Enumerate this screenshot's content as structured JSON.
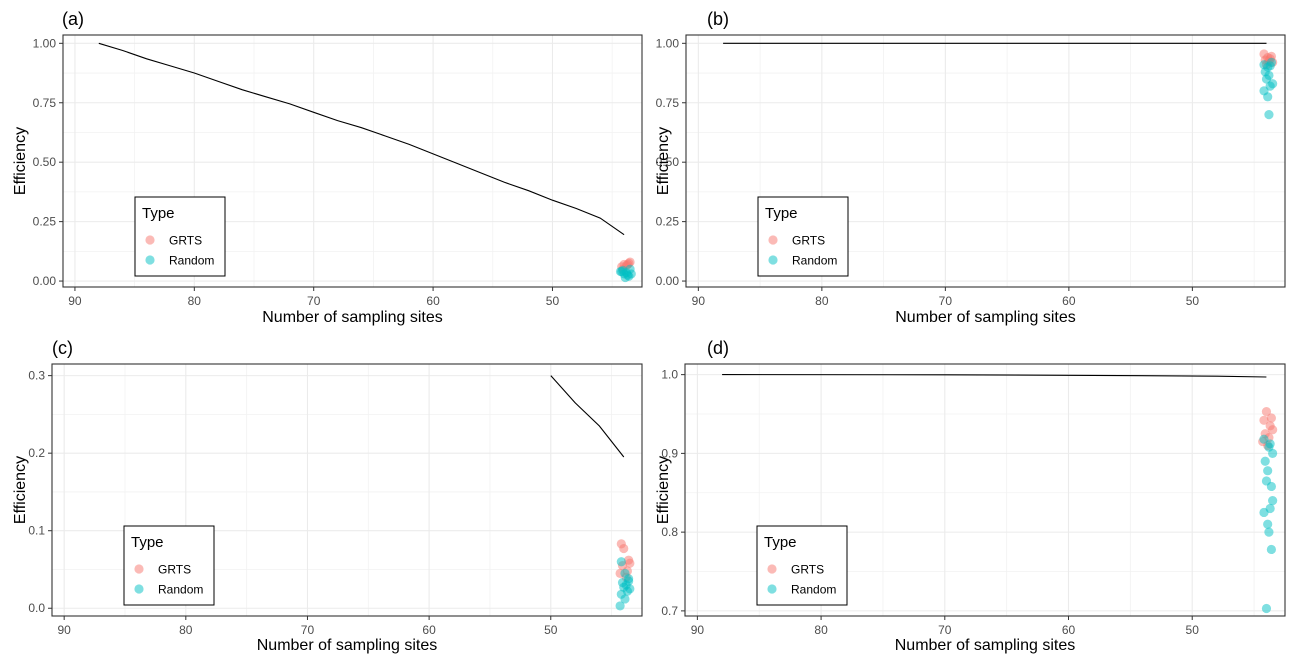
{
  "chart_data": [
    {
      "type": "scatter",
      "panel_label": "(a)",
      "xlabel": "Number of sampling sites",
      "ylabel": "Efficiency",
      "xlim": [
        91,
        42.5
      ],
      "ylim": [
        -0.025,
        1.035
      ],
      "x_reversed": true,
      "x_ticks": [
        90,
        80,
        70,
        60,
        50
      ],
      "x_tick_labels": [
        "90",
        "80",
        "70",
        "60",
        "50"
      ],
      "y_ticks": [
        0,
        0.25,
        0.5,
        0.75,
        1
      ],
      "y_tick_labels": [
        "0.00",
        "0.25",
        "0.50",
        "0.75",
        "1.00"
      ],
      "grid": true,
      "legend": {
        "title": "Type",
        "position": "bottom-left",
        "entries": [
          "GRTS",
          "Random"
        ]
      },
      "colors": {
        "GRTS": "#F8766D",
        "Random": "#00BFC4",
        "line": "#000000"
      },
      "line": {
        "x": [
          88,
          86,
          84,
          82,
          80,
          78,
          76,
          74,
          72,
          70,
          68,
          66,
          64,
          62,
          60,
          58,
          56,
          54,
          52,
          50,
          48,
          46,
          44
        ],
        "y": [
          1.0,
          0.97,
          0.935,
          0.905,
          0.875,
          0.84,
          0.805,
          0.775,
          0.745,
          0.71,
          0.675,
          0.645,
          0.61,
          0.575,
          0.535,
          0.495,
          0.455,
          0.415,
          0.38,
          0.34,
          0.305,
          0.265,
          0.195
        ]
      },
      "series": [
        {
          "name": "GRTS",
          "x": [
            44.2,
            44.0,
            43.6,
            43.8,
            43.5,
            44.1,
            43.7
          ],
          "y": [
            0.06,
            0.07,
            0.075,
            0.065,
            0.08,
            0.05,
            0.07
          ]
        },
        {
          "name": "Random",
          "x": [
            44.3,
            44.0,
            43.8,
            43.6,
            43.5,
            43.9,
            44.1,
            43.7,
            43.4,
            44.2
          ],
          "y": [
            0.04,
            0.03,
            0.035,
            0.02,
            0.05,
            0.015,
            0.045,
            0.025,
            0.03,
            0.04
          ]
        }
      ]
    },
    {
      "type": "scatter",
      "panel_label": "(b)",
      "xlabel": "Number of sampling sites",
      "ylabel": "Efficiency",
      "xlim": [
        91,
        42.5
      ],
      "ylim": [
        -0.025,
        1.035
      ],
      "x_reversed": true,
      "x_ticks": [
        90,
        80,
        70,
        60,
        50
      ],
      "x_tick_labels": [
        "90",
        "80",
        "70",
        "60",
        "50"
      ],
      "y_ticks": [
        0,
        0.25,
        0.5,
        0.75,
        1
      ],
      "y_tick_labels": [
        "0.00",
        "0.25",
        "0.50",
        "0.75",
        "1.00"
      ],
      "grid": true,
      "legend": {
        "title": "Type",
        "position": "bottom-left",
        "entries": [
          "GRTS",
          "Random"
        ]
      },
      "colors": {
        "GRTS": "#F8766D",
        "Random": "#00BFC4",
        "line": "#000000"
      },
      "line": {
        "x": [
          88,
          44
        ],
        "y": [
          1.0,
          1.0
        ]
      },
      "series": [
        {
          "name": "GRTS",
          "x": [
            44.2,
            43.9,
            43.6,
            44.1,
            43.7,
            43.5,
            44.0,
            43.8
          ],
          "y": [
            0.955,
            0.94,
            0.945,
            0.93,
            0.935,
            0.92,
            0.91,
            0.925
          ]
        },
        {
          "name": "Random",
          "x": [
            44.2,
            43.9,
            43.6,
            44.1,
            43.8,
            44.0,
            43.5,
            43.7,
            44.2,
            43.9,
            43.8,
            43.7
          ],
          "y": [
            0.91,
            0.9,
            0.92,
            0.88,
            0.865,
            0.85,
            0.83,
            0.82,
            0.8,
            0.775,
            0.7,
            0.905
          ]
        }
      ]
    },
    {
      "type": "scatter",
      "panel_label": "(c)",
      "xlabel": "Number of sampling sites",
      "ylabel": "Efficiency",
      "xlim": [
        91,
        42.5
      ],
      "ylim": [
        -0.01,
        0.315
      ],
      "x_reversed": true,
      "x_ticks": [
        90,
        80,
        70,
        60,
        50
      ],
      "x_tick_labels": [
        "90",
        "80",
        "70",
        "60",
        "50"
      ],
      "y_ticks": [
        0,
        0.1,
        0.2,
        0.3
      ],
      "y_tick_labels": [
        "0.0",
        "0.1",
        "0.2",
        "0.3"
      ],
      "grid": true,
      "legend": {
        "title": "Type",
        "position": "bottom-left",
        "entries": [
          "GRTS",
          "Random"
        ]
      },
      "colors": {
        "GRTS": "#F8766D",
        "Random": "#00BFC4",
        "line": "#000000"
      },
      "line": {
        "x": [
          50,
          48,
          46,
          44
        ],
        "y": [
          0.3,
          0.265,
          0.235,
          0.195
        ]
      },
      "series": [
        {
          "name": "GRTS",
          "x": [
            44.2,
            44.0,
            43.6,
            44.1,
            43.7,
            43.5,
            44.3,
            43.8
          ],
          "y": [
            0.083,
            0.077,
            0.062,
            0.055,
            0.048,
            0.058,
            0.045,
            0.04
          ]
        },
        {
          "name": "Random",
          "x": [
            44.2,
            43.9,
            43.6,
            44.1,
            43.8,
            44.0,
            43.5,
            43.7,
            44.2,
            43.9,
            44.3,
            43.6
          ],
          "y": [
            0.06,
            0.045,
            0.038,
            0.033,
            0.03,
            0.027,
            0.025,
            0.022,
            0.018,
            0.012,
            0.003,
            0.035
          ]
        }
      ]
    },
    {
      "type": "scatter",
      "panel_label": "(d)",
      "xlabel": "Number of sampling sites",
      "ylabel": "Efficiency",
      "xlim": [
        91,
        42.5
      ],
      "ylim": [
        0.6935,
        1.0135
      ],
      "x_reversed": true,
      "x_ticks": [
        90,
        80,
        70,
        60,
        50
      ],
      "x_tick_labels": [
        "90",
        "80",
        "70",
        "60",
        "50"
      ],
      "y_ticks": [
        0.7,
        0.8,
        0.9,
        1.0
      ],
      "y_tick_labels": [
        "0.7",
        "0.8",
        "0.9",
        "1.0"
      ],
      "grid": true,
      "legend": {
        "title": "Type",
        "position": "bottom-left",
        "entries": [
          "GRTS",
          "Random"
        ]
      },
      "colors": {
        "GRTS": "#F8766D",
        "Random": "#00BFC4",
        "line": "#000000"
      },
      "line": {
        "x": [
          88,
          70,
          58,
          48,
          44
        ],
        "y": [
          1.0,
          0.9998,
          0.999,
          0.998,
          0.997
        ]
      },
      "series": [
        {
          "name": "GRTS",
          "x": [
            44.0,
            43.6,
            44.2,
            43.7,
            43.5,
            44.1,
            43.8,
            44.3,
            43.9
          ],
          "y": [
            0.953,
            0.945,
            0.942,
            0.935,
            0.93,
            0.925,
            0.92,
            0.915,
            0.91
          ]
        },
        {
          "name": "Random",
          "x": [
            44.2,
            43.8,
            43.5,
            44.1,
            43.9,
            44.0,
            43.6,
            43.7,
            44.2,
            43.9,
            43.8,
            43.6,
            44.0,
            43.7,
            43.5
          ],
          "y": [
            0.918,
            0.908,
            0.9,
            0.89,
            0.878,
            0.865,
            0.858,
            0.83,
            0.825,
            0.81,
            0.8,
            0.778,
            0.703,
            0.912,
            0.84
          ]
        }
      ]
    }
  ]
}
